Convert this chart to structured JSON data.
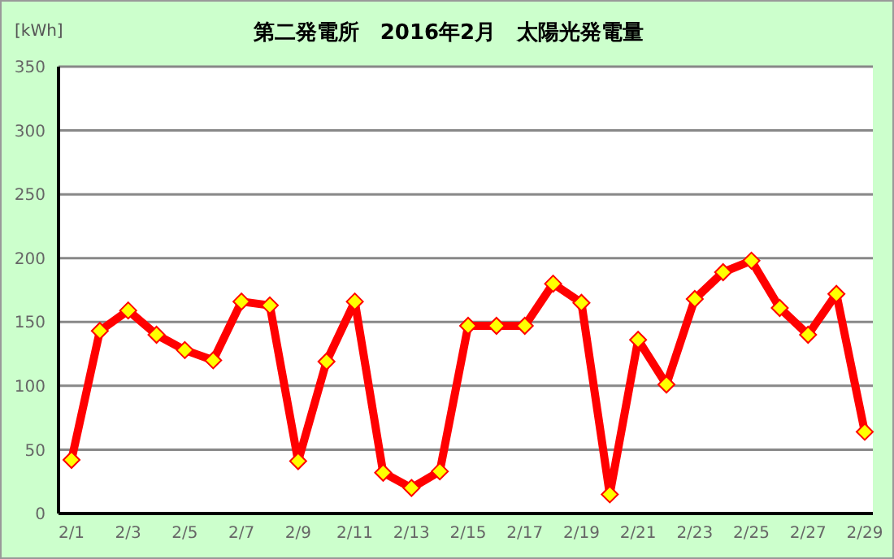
{
  "chart_data": {
    "type": "line",
    "title": "第二発電所　2016年2月　太陽光発電量",
    "ylabel": "[kWh]",
    "categories": [
      "2/1",
      null,
      "2/3",
      null,
      "2/5",
      null,
      "2/7",
      null,
      "2/9",
      null,
      "2/11",
      null,
      "2/13",
      null,
      "2/15",
      null,
      "2/17",
      null,
      "2/19",
      null,
      "2/21",
      null,
      "2/23",
      null,
      "2/25",
      null,
      "2/27",
      null,
      "2/29"
    ],
    "series": [
      {
        "color": "#ff0000",
        "values": [
          42,
          143,
          159,
          140,
          128,
          120,
          166,
          163,
          41,
          119,
          166,
          32,
          20,
          33,
          147,
          147,
          147,
          180,
          165,
          15,
          136,
          101,
          168,
          189,
          198,
          161,
          140,
          172,
          64
        ]
      }
    ],
    "ylim": [
      0,
      350
    ],
    "yticks": [
      0,
      50,
      100,
      150,
      200,
      250,
      300,
      350
    ],
    "grid": "y",
    "legend": false,
    "marker": "diamond",
    "line_style": "solid"
  }
}
